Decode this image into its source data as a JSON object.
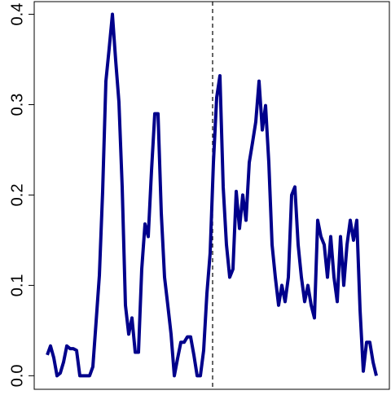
{
  "chart_data": {
    "type": "line",
    "x": [
      0,
      1,
      2,
      3,
      4,
      5,
      6,
      7,
      8,
      9,
      10,
      11,
      12,
      13,
      14,
      15,
      16,
      17,
      18,
      19,
      20,
      21,
      22,
      23,
      24,
      25,
      26,
      27,
      28,
      29,
      30,
      31,
      32,
      33,
      34,
      35,
      36,
      37,
      38,
      39,
      40,
      41,
      42,
      43,
      44,
      45,
      46,
      47,
      48,
      49,
      50,
      51,
      52,
      53,
      54,
      55,
      56,
      57,
      58,
      59,
      60,
      61,
      62,
      63,
      64,
      65,
      66,
      67,
      68,
      69,
      70,
      71,
      72,
      73,
      74,
      75,
      76,
      77,
      78,
      79,
      80,
      81,
      82,
      83,
      84,
      85,
      86,
      87,
      88,
      89,
      90,
      91,
      92,
      93,
      94,
      95,
      96,
      97,
      98,
      99,
      100,
      101
    ],
    "series": [
      {
        "color": "#00008b",
        "values": [
          0.023,
          0.033,
          0.02,
          0,
          0.003,
          0.015,
          0.033,
          0.03,
          0.03,
          0.028,
          0,
          0,
          0,
          0,
          0.01,
          0.06,
          0.111,
          0.204,
          0.326,
          0.362,
          0.4,
          0.349,
          0.303,
          0.209,
          0.078,
          0.046,
          0.064,
          0.026,
          0.026,
          0.118,
          0.168,
          0.154,
          0.227,
          0.29,
          0.29,
          0.18,
          0.109,
          0.078,
          0.046,
          0,
          0.019,
          0.037,
          0.037,
          0.043,
          0.043,
          0.023,
          0,
          0,
          0.028,
          0.091,
          0.136,
          0.236,
          0.308,
          0.332,
          0.209,
          0.145,
          0.109,
          0.118,
          0.204,
          0.163,
          0.2,
          0.172,
          0.236,
          0.258,
          0.281,
          0.326,
          0.272,
          0.299,
          0.236,
          0.145,
          0.109,
          0.078,
          0.1,
          0.082,
          0.109,
          0.2,
          0.209,
          0.145,
          0.109,
          0.082,
          0.1,
          0.078,
          0.064,
          0.172,
          0.154,
          0.145,
          0.109,
          0.154,
          0.109,
          0.082,
          0.154,
          0.1,
          0.145,
          0.172,
          0.15,
          0.172,
          0.073,
          0.005,
          0.037,
          0.037,
          0.015,
          0
        ]
      }
    ],
    "xlim": [
      -4,
      105
    ],
    "ylim": [
      -0.015,
      0.414
    ],
    "yticks": [
      {
        "value": 0,
        "label": "0.0"
      },
      0.1,
      0.2,
      0.3,
      0.4
    ],
    "vline_x": 50.75
  }
}
